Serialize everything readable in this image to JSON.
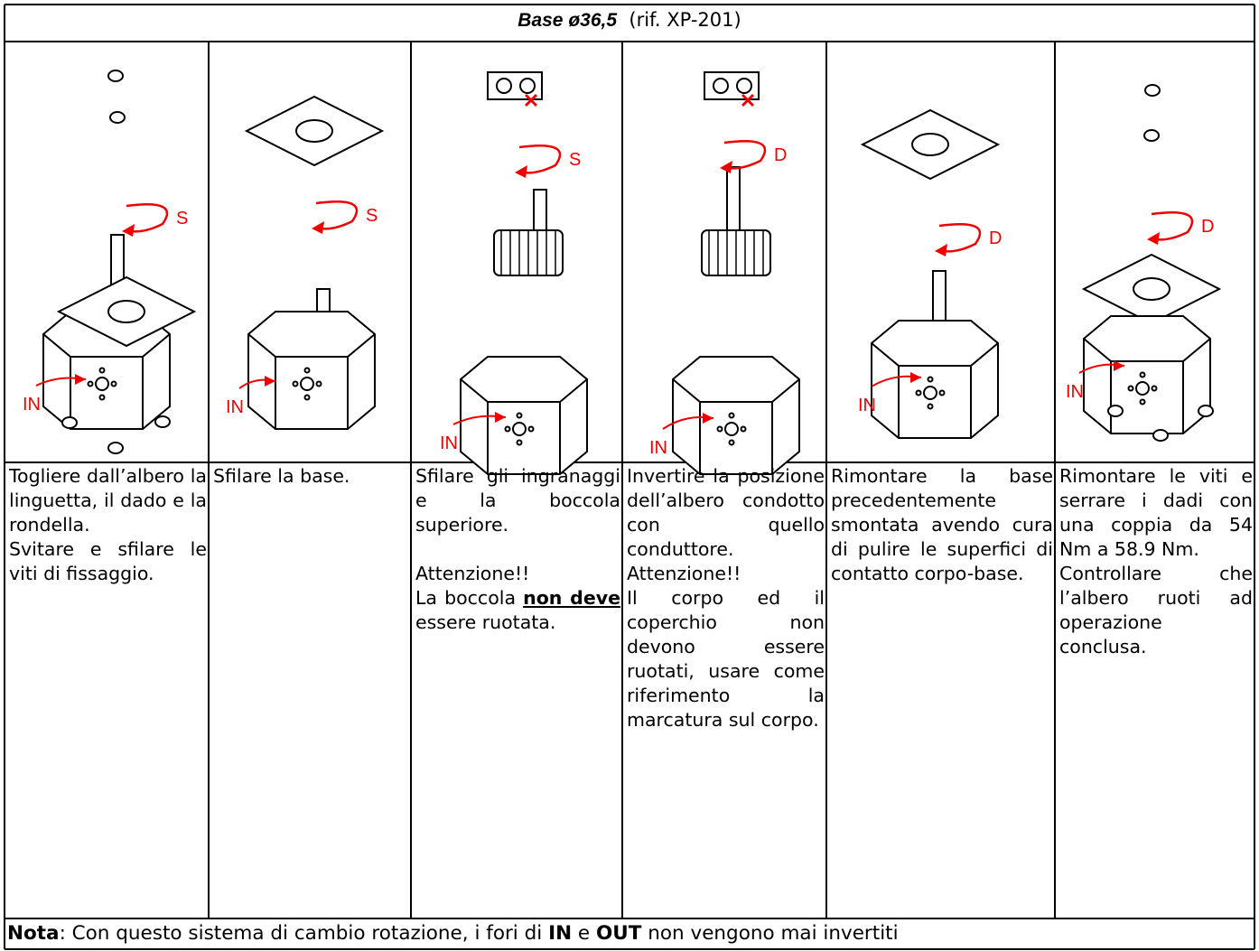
{
  "header": {
    "title": "Base ø36,5",
    "ref": "(rif. XP-201)"
  },
  "steps": [
    {
      "labels": [
        "S",
        "IN"
      ],
      "paragraphs": [
        [
          {
            "text": "Togliere dall’albero la linguetta, il dado e la rondella."
          }
        ],
        [
          {
            "text": "Svitare e sfilare le viti di fissaggio."
          }
        ]
      ]
    },
    {
      "labels": [
        "S",
        "IN"
      ],
      "paragraphs": [
        [
          {
            "text": "Sfilare la base."
          }
        ]
      ]
    },
    {
      "labels": [
        "S",
        "IN"
      ],
      "paragraphs": [
        [
          {
            "text": "Sfilare gli ingranaggi e la boccola superiore."
          }
        ],
        [],
        [
          {
            "text": "Attenzione!!"
          }
        ],
        [
          {
            "text": "La boccola "
          },
          {
            "text": "non deve",
            "bold": true,
            "underline": true
          },
          {
            "text": " essere ruotata."
          }
        ]
      ]
    },
    {
      "labels": [
        "D",
        "IN"
      ],
      "paragraphs": [
        [
          {
            "text": "Invertire la posizione dell’albero condotto con quello conduttore."
          }
        ],
        [
          {
            "text": "Attenzione!!"
          }
        ],
        [
          {
            "text": "Il corpo ed il coperchio non devono essere ruotati, usare come riferimento la marcatura sul corpo."
          }
        ]
      ]
    },
    {
      "labels": [
        "D",
        "IN"
      ],
      "paragraphs": [
        [
          {
            "text": "Rimontare la base precedentemente smontata avendo cura di pulire le superfici di contatto corpo-base."
          }
        ]
      ]
    },
    {
      "labels": [
        "D",
        "IN"
      ],
      "paragraphs": [
        [
          {
            "text": "Rimontare le viti e serrare i dadi con una coppia da 54 Nm a 58.9 Nm."
          }
        ],
        [
          {
            "text": "Controllare che l’albero ruoti ad operazione conclusa."
          }
        ]
      ]
    }
  ],
  "note": [
    {
      "text": "Nota",
      "bold": true
    },
    {
      "text": ": Con questo sistema di cambio rotazione, i fori di "
    },
    {
      "text": "IN",
      "bold": true
    },
    {
      "text": " e "
    },
    {
      "text": "OUT",
      "bold": true
    },
    {
      "text": " non vengono mai invertiti"
    }
  ]
}
